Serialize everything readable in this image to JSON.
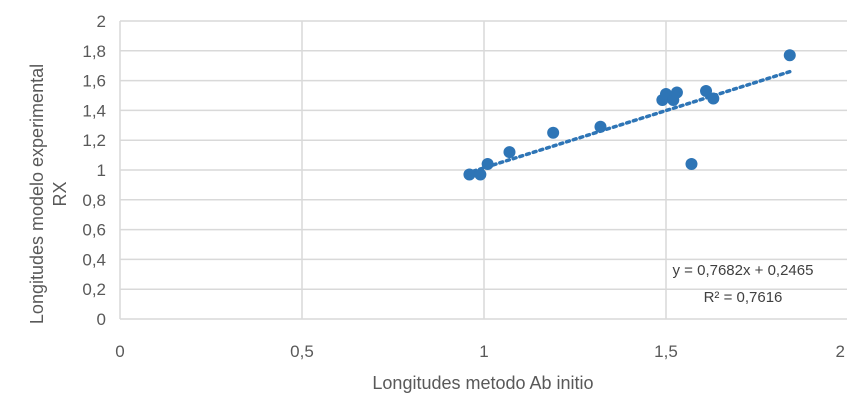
{
  "chart_data": {
    "type": "scatter",
    "xlabel": "Longitudes metodo Ab initio",
    "ylabel_line1": "Longitudes modelo experimental",
    "ylabel_line2": "RX",
    "xlim": [
      0,
      2
    ],
    "ylim": [
      0,
      2
    ],
    "x_ticks": [
      {
        "value": 0,
        "label": "0"
      },
      {
        "value": 0.5,
        "label": "0,5"
      },
      {
        "value": 1,
        "label": "1"
      },
      {
        "value": 1.5,
        "label": "1,5"
      },
      {
        "value": 2,
        "label": "2"
      }
    ],
    "y_ticks": [
      {
        "value": 0,
        "label": "0"
      },
      {
        "value": 0.2,
        "label": "0,2"
      },
      {
        "value": 0.4,
        "label": "0,4"
      },
      {
        "value": 0.6,
        "label": "0,6"
      },
      {
        "value": 0.8,
        "label": "0,8"
      },
      {
        "value": 1,
        "label": "1"
      },
      {
        "value": 1.2,
        "label": "1,2"
      },
      {
        "value": 1.4,
        "label": "1,4"
      },
      {
        "value": 1.6,
        "label": "1,6"
      },
      {
        "value": 1.8,
        "label": "1,8"
      },
      {
        "value": 2,
        "label": "2"
      }
    ],
    "grid": true,
    "points": [
      {
        "x": 0.96,
        "y": 0.97
      },
      {
        "x": 0.99,
        "y": 0.97
      },
      {
        "x": 1.01,
        "y": 1.04
      },
      {
        "x": 1.07,
        "y": 1.12
      },
      {
        "x": 1.19,
        "y": 1.25
      },
      {
        "x": 1.32,
        "y": 1.29
      },
      {
        "x": 1.49,
        "y": 1.47
      },
      {
        "x": 1.5,
        "y": 1.51
      },
      {
        "x": 1.52,
        "y": 1.47
      },
      {
        "x": 1.53,
        "y": 1.52
      },
      {
        "x": 1.57,
        "y": 1.04
      },
      {
        "x": 1.61,
        "y": 1.53
      },
      {
        "x": 1.63,
        "y": 1.48
      },
      {
        "x": 1.84,
        "y": 1.77
      }
    ],
    "trendline": {
      "type": "linear",
      "slope": 0.7682,
      "intercept": 0.2465,
      "x_range": [
        0.97,
        1.84
      ],
      "equation_label": "y = 0,7682x + 0,2465",
      "r2_label": "R² = 0,7616"
    },
    "colors": {
      "point": "#2e75b6",
      "trendline": "#2e75b6",
      "grid": "#d9d9d9",
      "text": "#595959"
    }
  }
}
